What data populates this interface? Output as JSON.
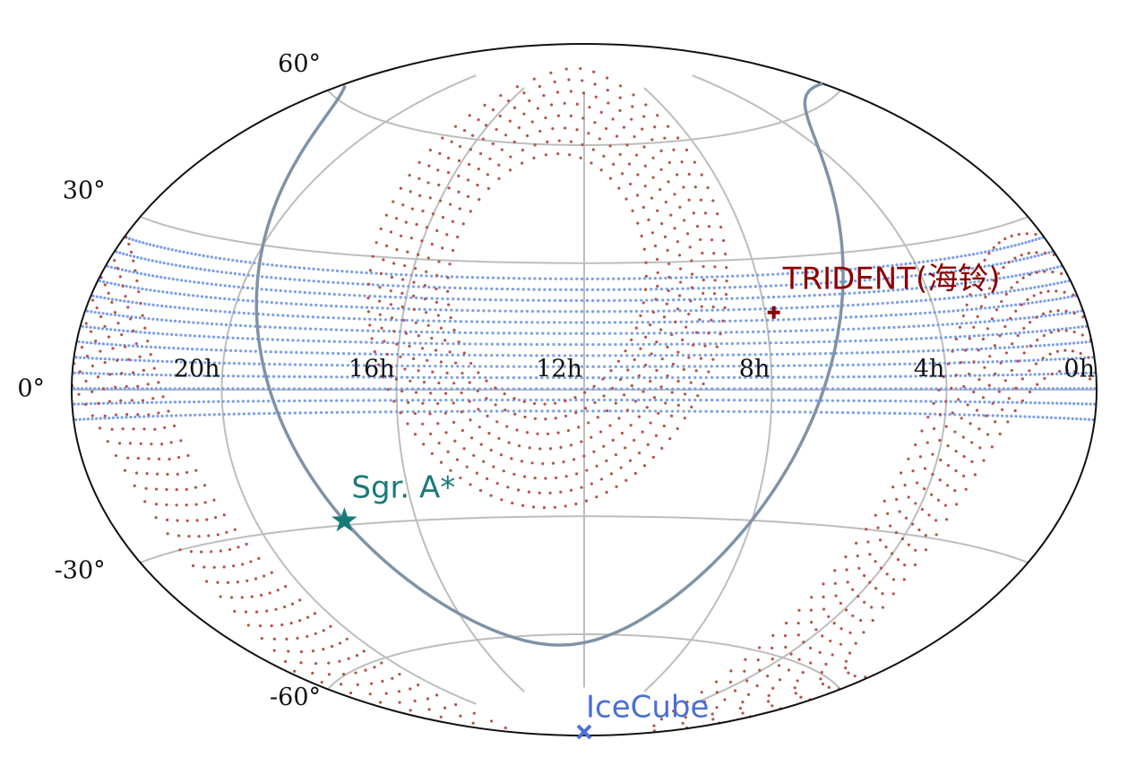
{
  "chart_data": {
    "type": "skymap",
    "projection": "hammer",
    "xlim": [
      24,
      0
    ],
    "xticks": [
      {
        "value": 20,
        "label": "20h"
      },
      {
        "value": 16,
        "label": "16h"
      },
      {
        "value": 12,
        "label": "12h"
      },
      {
        "value": 8,
        "label": "8h"
      },
      {
        "value": 4,
        "label": "4h"
      },
      {
        "value": 0,
        "label": "0h"
      }
    ],
    "ylim": [
      -90,
      90
    ],
    "yticks": [
      {
        "value": 60,
        "label": "60°"
      },
      {
        "value": 30,
        "label": "30°"
      },
      {
        "value": 0,
        "label": "0°"
      },
      {
        "value": -30,
        "label": "-30°"
      },
      {
        "value": -60,
        "label": "-60°"
      }
    ],
    "grid": true,
    "galactic_pole": {
      "ra": 192.859,
      "dec": 27.128,
      "l_ncp": 122.932
    },
    "galactic_plane_color": "#7f93a6",
    "regions": [
      {
        "frame": "equatorial",
        "dec_range": [
          -5,
          28
        ],
        "color": "#7a9ee8"
      },
      {
        "frame": "galactic",
        "abs_b_range": [
          35,
          62
        ],
        "color": "#b5544a"
      }
    ],
    "markers": [
      {
        "name": "TRIDENT(海铃)",
        "ra": 7.8,
        "dec": 17.5,
        "symbol": "+",
        "color": "#8b0000"
      },
      {
        "name": "Sgr. A*",
        "ra": 17.76,
        "dec": -29,
        "symbol": "star",
        "color": "#1a7a7a"
      },
      {
        "name": "IceCube",
        "ra": 12,
        "dec": -90,
        "symbol": "x",
        "color": "#4a6fd8"
      }
    ]
  }
}
